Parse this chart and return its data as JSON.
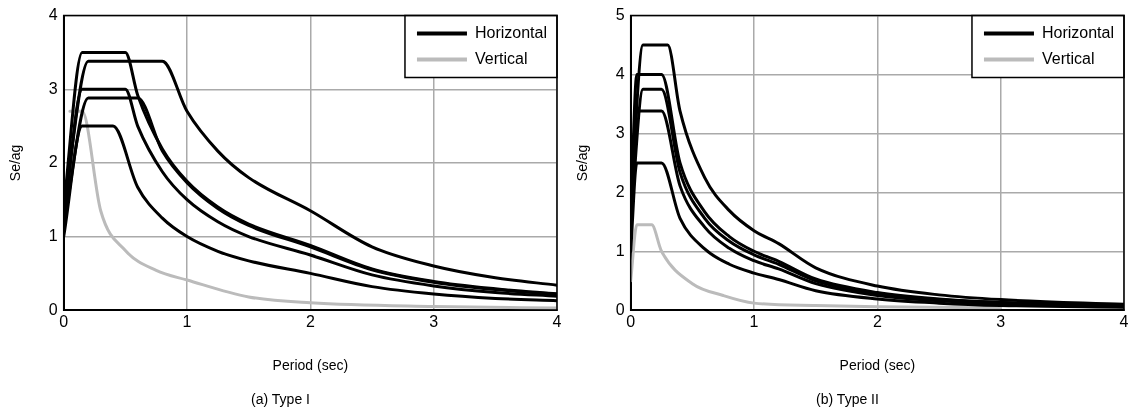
{
  "chart_data": [
    {
      "type": "line",
      "title": "(a) Type I",
      "xlabel": "Period (sec)",
      "ylabel": "Se/ag",
      "xlim": [
        0,
        4
      ],
      "xticks": [
        0,
        1,
        2,
        3,
        4
      ],
      "ylim": [
        0,
        4
      ],
      "yticks": [
        0,
        1,
        2,
        3,
        4
      ],
      "grid": true,
      "legend": "top right",
      "marker": "none",
      "line_style": "solid",
      "series": [
        {
          "name": "Horizontal",
          "color": "#000000",
          "x": [
            0,
            0.15,
            0.4,
            0.6,
            0.8,
            1,
            1.25,
            1.5,
            2,
            2.5,
            3,
            3.5,
            4
          ],
          "values": [
            1.0,
            2.5,
            2.5,
            1.67,
            1.25,
            1.0,
            0.8,
            0.67,
            0.5,
            0.32,
            0.22,
            0.16,
            0.13
          ]
        },
        {
          "color": "#000000",
          "x": [
            0,
            0.15,
            0.5,
            0.6,
            0.8,
            1,
            1.25,
            1.5,
            2,
            2.5,
            3,
            3.5,
            4
          ],
          "values": [
            1.2,
            3.0,
            3.0,
            2.5,
            1.88,
            1.5,
            1.2,
            1.0,
            0.75,
            0.48,
            0.33,
            0.24,
            0.19
          ]
        },
        {
          "color": "#000000",
          "x": [
            0,
            0.2,
            0.6,
            0.8,
            1,
            1.25,
            1.5,
            2,
            2.5,
            3,
            3.5,
            4
          ],
          "values": [
            1.15,
            2.88,
            2.88,
            2.16,
            1.73,
            1.38,
            1.15,
            0.86,
            0.55,
            0.38,
            0.28,
            0.22
          ]
        },
        {
          "color": "#000000",
          "x": [
            0,
            0.2,
            0.8,
            1,
            1.25,
            1.5,
            2,
            2.5,
            3,
            3.5,
            4
          ],
          "values": [
            1.35,
            3.38,
            3.38,
            2.7,
            2.16,
            1.8,
            1.35,
            0.86,
            0.6,
            0.44,
            0.34
          ]
        },
        {
          "color": "#000000",
          "x": [
            0,
            0.15,
            0.5,
            0.6,
            0.8,
            1,
            1.25,
            1.5,
            2,
            2.5,
            3,
            3.5,
            4
          ],
          "values": [
            1.4,
            3.5,
            3.5,
            2.92,
            2.19,
            1.75,
            1.4,
            1.17,
            0.88,
            0.56,
            0.39,
            0.29,
            0.22
          ]
        },
        {
          "name": "Vertical",
          "color": "#bbbbbb",
          "x": [
            0.05,
            0.15,
            0.3,
            0.5,
            0.75,
            1,
            1.5,
            2,
            3,
            4
          ],
          "values": [
            2.7,
            2.7,
            1.35,
            0.81,
            0.54,
            0.41,
            0.18,
            0.1,
            0.05,
            0.03
          ]
        }
      ]
    },
    {
      "type": "line",
      "title": "(b) Type II",
      "xlabel": "Period (sec)",
      "ylabel": "Se/ag",
      "xlim": [
        0,
        4
      ],
      "xticks": [
        0,
        1,
        2,
        3,
        4
      ],
      "ylim": [
        0,
        5
      ],
      "yticks": [
        0,
        1,
        2,
        3,
        4,
        5
      ],
      "grid": true,
      "legend": "top right",
      "marker": "none",
      "line_style": "solid",
      "series": [
        {
          "name": "Horizontal",
          "color": "#000000",
          "x": [
            0,
            0.05,
            0.25,
            0.4,
            0.6,
            0.8,
            1,
            1.2,
            1.5,
            2,
            2.5,
            3,
            4
          ],
          "values": [
            1.0,
            2.5,
            2.5,
            1.56,
            1.04,
            0.78,
            0.63,
            0.52,
            0.33,
            0.19,
            0.12,
            0.08,
            0.05
          ]
        },
        {
          "color": "#000000",
          "x": [
            0,
            0.05,
            0.25,
            0.4,
            0.6,
            0.8,
            1,
            1.2,
            1.5,
            2,
            2.5,
            3,
            4
          ],
          "values": [
            1.35,
            3.38,
            3.38,
            2.11,
            1.41,
            1.05,
            0.84,
            0.7,
            0.45,
            0.25,
            0.16,
            0.11,
            0.06
          ]
        },
        {
          "color": "#000000",
          "x": [
            0,
            0.1,
            0.25,
            0.4,
            0.6,
            0.8,
            1,
            1.2,
            1.5,
            2,
            2.5,
            3,
            4
          ],
          "values": [
            1.5,
            3.75,
            3.75,
            2.34,
            1.56,
            1.17,
            0.94,
            0.78,
            0.5,
            0.28,
            0.18,
            0.13,
            0.07
          ]
        },
        {
          "color": "#000000",
          "x": [
            0,
            0.1,
            0.3,
            0.4,
            0.6,
            0.8,
            1,
            1.2,
            1.5,
            2,
            2.5,
            3,
            4
          ],
          "values": [
            1.8,
            4.5,
            4.5,
            3.38,
            2.25,
            1.69,
            1.35,
            1.13,
            0.72,
            0.41,
            0.26,
            0.18,
            0.1
          ]
        },
        {
          "color": "#000000",
          "x": [
            0,
            0.05,
            0.25,
            0.4,
            0.6,
            0.8,
            1,
            1.2,
            1.5,
            2,
            2.5,
            3,
            4
          ],
          "values": [
            1.6,
            4.0,
            4.0,
            2.5,
            1.67,
            1.25,
            1.0,
            0.83,
            0.53,
            0.3,
            0.19,
            0.13,
            0.08
          ]
        },
        {
          "name": "Vertical",
          "color": "#bbbbbb",
          "x": [
            0,
            0.05,
            0.17,
            0.25,
            0.5,
            0.75,
            1,
            1.5,
            2,
            3
          ],
          "values": [
            0.5,
            1.45,
            1.45,
            1.0,
            0.45,
            0.25,
            0.12,
            0.08,
            0.06,
            0.04
          ]
        }
      ]
    }
  ]
}
